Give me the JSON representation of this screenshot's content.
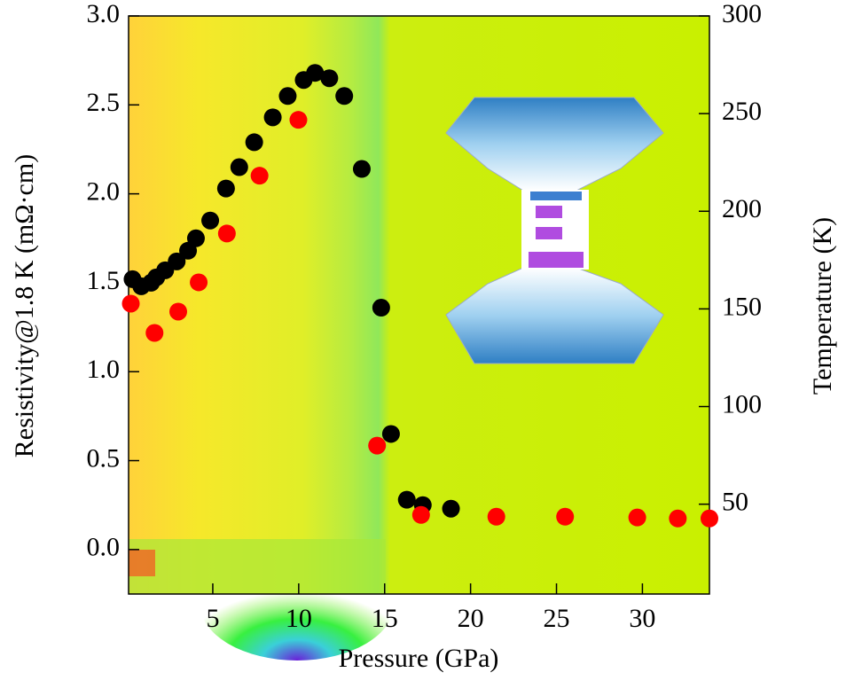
{
  "chart_data": {
    "type": "scatter",
    "xlabel": "Pressure (GPa)",
    "ylabel": "Resistivity@1.8 K (mΩ·cm)",
    "y2label": "Temperature (K)",
    "xlim": [
      0.1,
      33.9
    ],
    "xticks": [
      5,
      10,
      15,
      20,
      25,
      30
    ],
    "ylim": [
      -0.25,
      3.0
    ],
    "yticks": [
      {
        "value": 0,
        "label": "0.0"
      },
      0.5,
      {
        "value": 1,
        "label": "1.0"
      },
      1.5,
      {
        "value": 2,
        "label": "2.0"
      },
      2.5,
      {
        "value": 3,
        "label": "3.0"
      }
    ],
    "y2lim": [
      4,
      300
    ],
    "y2ticks": [
      50,
      100,
      150,
      200,
      250,
      300
    ],
    "series": [
      {
        "color": "#000000",
        "x": [
          0.33,
          0.84,
          1.41,
          1.71,
          2.23,
          2.9,
          3.56,
          4.02,
          4.85,
          5.77,
          6.54,
          7.41,
          8.49,
          9.36,
          10.29,
          10.95,
          11.78,
          12.65,
          13.67,
          14.8,
          15.37,
          16.29,
          17.22,
          18.86
        ],
        "values": [
          1.52,
          1.48,
          1.5,
          1.53,
          1.57,
          1.62,
          1.68,
          1.75,
          1.85,
          2.03,
          2.15,
          2.29,
          2.43,
          2.55,
          2.64,
          2.68,
          2.65,
          2.55,
          2.14,
          1.36,
          0.65,
          0.28,
          0.25,
          0.23
        ]
      },
      {
        "color": "#ff0000",
        "axis": "y2",
        "x": [
          0.23,
          1.61,
          2.99,
          4.18,
          5.82,
          7.72,
          9.98,
          14.56,
          17.12,
          21.5,
          25.5,
          29.7,
          32.06,
          33.9
        ],
        "values": [
          152.7,
          137.7,
          148.6,
          163.6,
          188.6,
          218.2,
          246.8,
          80,
          44.5,
          43.6,
          43.6,
          43.2,
          42.7,
          42.7
        ]
      }
    ]
  }
}
